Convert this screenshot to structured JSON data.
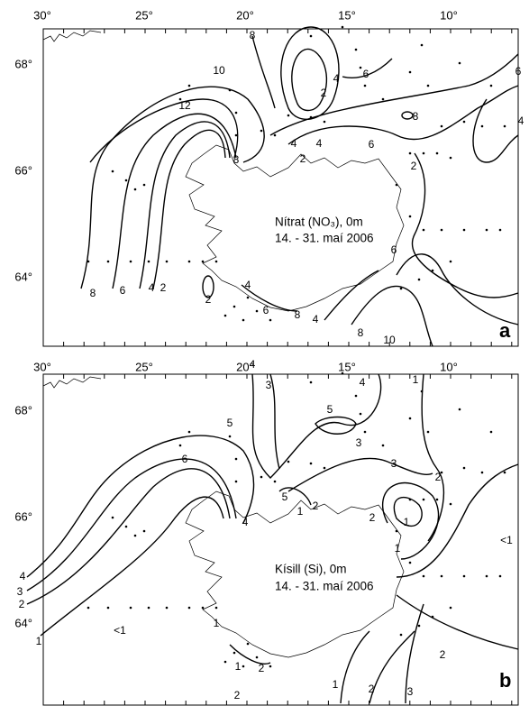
{
  "panels": [
    {
      "longitude_labels": [
        "30°",
        "25°",
        "20°",
        "15°",
        "10°"
      ],
      "latitude_labels": [
        "68°",
        "66°",
        "64°"
      ],
      "title": "Nítrat (NO₃), 0m",
      "date": "14. - 31. maí 2006",
      "letter": "a",
      "contour_labels": [
        "8",
        "10",
        "12",
        "6",
        "4",
        "2",
        "6",
        "8",
        "4",
        "8",
        "4",
        "4",
        "2",
        "6",
        "2",
        "8",
        "6",
        "4",
        "2",
        "2",
        "4",
        "6",
        "8",
        "4",
        "8",
        "10",
        "6"
      ]
    },
    {
      "longitude_labels": [
        "30°",
        "25°",
        "20°",
        "15°",
        "10°"
      ],
      "latitude_labels": [
        "68°",
        "66°",
        "64°"
      ],
      "title": "Kísill (Si), 0m",
      "date": "14. - 31. maí 2006",
      "letter": "b",
      "contour_labels": [
        "4",
        "3",
        "4",
        "1",
        "5",
        "5",
        "3",
        "6",
        "3",
        "2",
        "5",
        "2",
        "1",
        "2",
        "4",
        "1",
        "1",
        "<1",
        "4",
        "3",
        "2",
        "1",
        "<1",
        "1",
        "2",
        "1",
        "2",
        "1",
        "2",
        "3",
        "2"
      ]
    }
  ]
}
